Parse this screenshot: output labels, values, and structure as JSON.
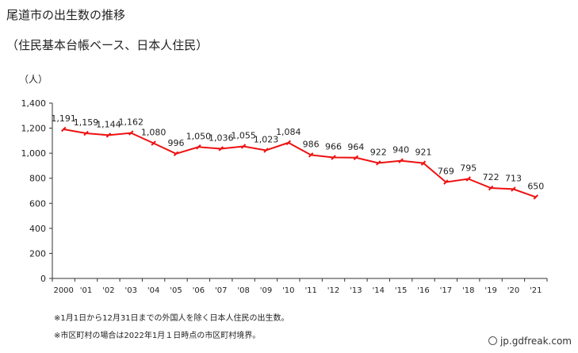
{
  "title": "尾道市の出生数の推移",
  "subtitle": "（住民基本台帳ベース、日本人住民）",
  "notes": [
    "※1月1日から12月31日までの外国人を除く日本人住民の出生数。",
    "※市区町村の場合は2022年1月１日時点の市区町村境界。"
  ],
  "credit": "jp.gdfreak.com",
  "chart_data": {
    "type": "line",
    "ylabel": "（人）",
    "ylim": [
      0,
      1400
    ],
    "yticks": [
      0,
      200,
      400,
      600,
      800,
      1000,
      1200,
      1400
    ],
    "ytick_labels": [
      "0",
      "200",
      "400",
      "600",
      "800",
      "1,000",
      "1,200",
      "1,400"
    ],
    "categories": [
      "2000",
      "'01",
      "'02",
      "'03",
      "'04",
      "'05",
      "'06",
      "'07",
      "'08",
      "'09",
      "'10",
      "'11",
      "'12",
      "'13",
      "'14",
      "'15",
      "'16",
      "'17",
      "'18",
      "'19",
      "'20",
      "'21"
    ],
    "values": [
      1191,
      1159,
      1144,
      1162,
      1080,
      996,
      1050,
      1036,
      1055,
      1023,
      1084,
      986,
      966,
      964,
      922,
      940,
      921,
      769,
      795,
      722,
      713,
      650
    ],
    "value_labels": [
      "1,191",
      "1,159",
      "1,144",
      "1,162",
      "1,080",
      "996",
      "1,050",
      "1,036",
      "1,055",
      "1,023",
      "1,084",
      "986",
      "966",
      "964",
      "922",
      "940",
      "921",
      "769",
      "795",
      "722",
      "713",
      "650"
    ],
    "line_color": "#ee1111",
    "grid": false
  }
}
